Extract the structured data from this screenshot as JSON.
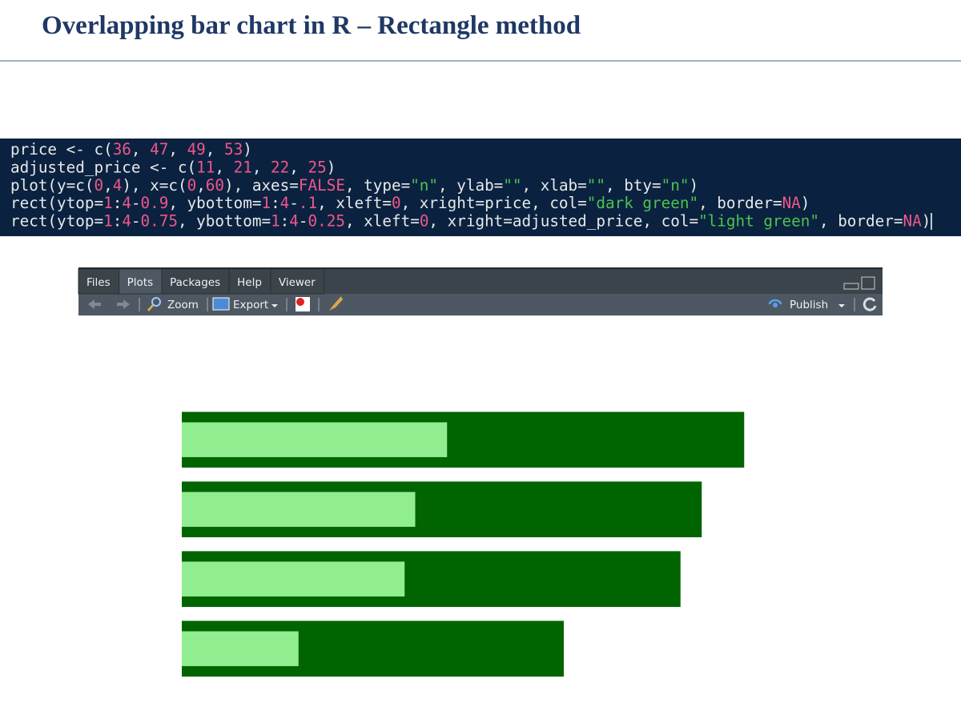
{
  "header": {
    "title": "Overlapping bar chart in R – Rectangle method"
  },
  "code": {
    "lines": [
      "price <- c(36, 47, 49, 53)",
      "adjusted_price <- c(11, 21, 22, 25)",
      "plot(y=c(0,4), x=c(0,60), axes=FALSE, type=\"n\", ylab=\"\", xlab=\"\", bty=\"n\")",
      "rect(ytop=1:4-0.9, ybottom=1:4-.1, xleft=0, xright=price, col=\"dark green\", border=NA)",
      "rect(ytop=1:4-0.75, ybottom=1:4-0.25, xleft=0, xright=adjusted_price, col=\"light green\", border=NA)"
    ]
  },
  "panel": {
    "tabs": [
      "Files",
      "Plots",
      "Packages",
      "Help",
      "Viewer"
    ],
    "active_tab": 1,
    "toolbar": {
      "zoom": "Zoom",
      "export": "Export",
      "publish": "Publish"
    }
  },
  "chart_data": {
    "type": "overlapping-bar",
    "series": [
      {
        "color": "#006400",
        "values": [
          36,
          47,
          49,
          53
        ]
      },
      {
        "color": "#90ee90",
        "values": [
          11,
          21,
          22,
          25
        ]
      }
    ],
    "xlim": [
      0,
      60
    ],
    "ylim": [
      0,
      4
    ]
  }
}
